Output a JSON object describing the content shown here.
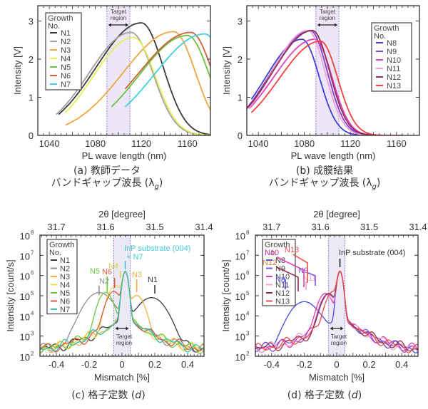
{
  "chart_data": [
    {
      "id": "a",
      "type": "line",
      "title": "",
      "xlabel": "PL wave length (nm)",
      "ylabel": "Intensity [V]",
      "xlim": [
        1030,
        1180
      ],
      "ylim": [
        0,
        3.4
      ],
      "xticks": [
        1040,
        1080,
        1120,
        1160
      ],
      "yticks": [
        0,
        1,
        2,
        3
      ],
      "target_region": [
        1090,
        1110
      ],
      "target_label": "Target region",
      "legend": {
        "title": "Growth No.",
        "placement": "top-left"
      },
      "series": [
        {
          "name": "N1",
          "color": "#3a3a3a",
          "x_start": 1048,
          "x_end": 1180,
          "peak_x": 1120,
          "peak_y": 2.95,
          "start_y": 0.55
        },
        {
          "name": "N2",
          "color": "#a0a0a0",
          "x_start": 1046,
          "x_end": 1180,
          "peak_x": 1111,
          "peak_y": 2.7,
          "start_y": 0.55
        },
        {
          "name": "N3",
          "color": "#f0a640",
          "x_start": 1054,
          "x_end": 1180,
          "peak_x": 1148,
          "peak_y": 2.72,
          "start_y": 0.27
        },
        {
          "name": "N4",
          "color": "#e6f05a",
          "x_start": 1054,
          "x_end": 1180,
          "peak_x": 1113,
          "peak_y": 2.57,
          "start_y": 0.6
        },
        {
          "name": "N5",
          "color": "#6cc040",
          "x_start": 1094,
          "x_end": 1180,
          "peak_x": 1160,
          "peak_y": 2.62,
          "start_y": 0.75
        },
        {
          "name": "N6",
          "color": "#d0603a",
          "x_start": 1106,
          "x_end": 1180,
          "peak_x": 1163,
          "peak_y": 2.7,
          "start_y": 1.22
        },
        {
          "name": "N7",
          "color": "#40d0e0",
          "x_start": 1106,
          "x_end": 1180,
          "peak_x": 1175,
          "peak_y": 2.66,
          "start_y": 0.75
        }
      ],
      "caption_line1": "(a) 教師データ",
      "caption_line2": "バンドギャップ波長 (λg)"
    },
    {
      "id": "b",
      "type": "line",
      "title": "",
      "xlabel": "PL wave length (nm)",
      "ylabel": "Intensity [V]",
      "xlim": [
        1030,
        1180
      ],
      "ylim": [
        0,
        3.4
      ],
      "xticks": [
        1040,
        1080,
        1120,
        1160
      ],
      "yticks": [
        0,
        1,
        2,
        3
      ],
      "target_region": [
        1090,
        1110
      ],
      "target_label": "Target region",
      "legend": {
        "title": "Growth No.",
        "placement": "top-right"
      },
      "series": [
        {
          "name": "N8",
          "color": "#4040d8",
          "x_start": 1034,
          "x_end": 1166,
          "peak_x": 1078,
          "peak_y": 2.52,
          "start_y": 0.95
        },
        {
          "name": "N9",
          "color": "#8040d8",
          "x_start": 1030,
          "x_end": 1166,
          "peak_x": 1085,
          "peak_y": 2.75,
          "start_y": 0.72
        },
        {
          "name": "N10",
          "color": "#e040c0",
          "x_start": 1032,
          "x_end": 1166,
          "peak_x": 1089,
          "peak_y": 2.52,
          "start_y": 0.7
        },
        {
          "name": "N11",
          "color": "#f0a0d8",
          "x_start": 1032,
          "x_end": 1166,
          "peak_x": 1083,
          "peak_y": 2.75,
          "start_y": 0.72
        },
        {
          "name": "N12",
          "color": "#903050",
          "x_start": 1030,
          "x_end": 1166,
          "peak_x": 1087,
          "peak_y": 2.75,
          "start_y": 0.7
        },
        {
          "name": "N13",
          "color": "#f04040",
          "x_start": 1034,
          "x_end": 1166,
          "peak_x": 1094,
          "peak_y": 2.47,
          "start_y": 0.6
        }
      ],
      "caption_line1": "(b) 成膜結果",
      "caption_line2": "バンドギャップ波長 (λg)"
    },
    {
      "id": "c",
      "type": "line",
      "title": "",
      "xlabel": "Mismatch [%]",
      "ylabel": "Intensity [count/s]",
      "top_xlabel": "2θ [degree]",
      "top_xticks": [
        "31.7",
        "31.6",
        "31.5",
        "31.4"
      ],
      "xlim": [
        -0.5,
        0.5
      ],
      "ylim_log10": [
        2,
        8
      ],
      "xticks": [
        "-0.4",
        "-0.2",
        "0",
        "0.2",
        "0.4"
      ],
      "yticks": [
        "10^2",
        "10^3",
        "10^4",
        "10^5",
        "10^6",
        "10^7",
        "10^8"
      ],
      "target_region": [
        -0.05,
        0.05
      ],
      "target_label": "Target region",
      "legend": {
        "title": "Growth No.",
        "placement": "top-left"
      },
      "substrate_peak": {
        "x": 0.02,
        "log10_y": 6.2
      },
      "series": [
        {
          "name": "N1",
          "color": "#3a3a3a",
          "layer_peak_x": 0.18,
          "layer_log10_y": 4.9
        },
        {
          "name": "N2",
          "color": "#909090",
          "layer_peak_x": -0.14,
          "layer_log10_y": 5.15
        },
        {
          "name": "N3",
          "color": "#f0b040",
          "layer_peak_x": 0.09,
          "layer_log10_y": 5.0
        },
        {
          "name": "N4",
          "color": "#e8e050",
          "layer_peak_x": -0.04,
          "layer_log10_y": 5.5
        },
        {
          "name": "N5",
          "color": "#70c840",
          "layer_peak_x": -0.1,
          "layer_log10_y": 5.15
        },
        {
          "name": "N6",
          "color": "#d85a3a",
          "layer_peak_x": -0.05,
          "layer_log10_y": 5.2
        },
        {
          "name": "N7",
          "color": "#30c0b0",
          "layer_peak_x": 0.02,
          "layer_log10_y": 6.2
        }
      ],
      "annotations": [
        {
          "text": "InP substrate (004)",
          "color": "#40c8d8"
        },
        {
          "text": "+ N7",
          "color": "#40c8d8"
        },
        {
          "text": "N1",
          "color": "#3a3a3a"
        },
        {
          "text": "N2",
          "color": "#909090"
        },
        {
          "text": "N3",
          "color": "#f0b040"
        },
        {
          "text": "N4",
          "color": "#d8d040"
        },
        {
          "text": "N5",
          "color": "#70c840"
        },
        {
          "text": "N6",
          "color": "#d85a3a"
        }
      ],
      "caption": "(c) 格子定数 (d)"
    },
    {
      "id": "d",
      "type": "line",
      "title": "",
      "xlabel": "Mismatch [%]",
      "ylabel": "Intensity [count/s]",
      "top_xlabel": "2θ [degree]",
      "top_xticks": [
        "31.7",
        "31.6",
        "31.5",
        "31.4"
      ],
      "xlim": [
        -0.5,
        0.5
      ],
      "ylim_log10": [
        2,
        8
      ],
      "xticks": [
        "-0.4",
        "-0.2",
        "0",
        "0.2",
        "0.4"
      ],
      "yticks": [
        "10^2",
        "10^3",
        "10^4",
        "10^5",
        "10^6",
        "10^7",
        "10^8"
      ],
      "target_region": [
        -0.05,
        0.05
      ],
      "target_label": "Target region",
      "legend": {
        "title": "Growth No.",
        "placement": "top-left"
      },
      "substrate_peak": {
        "x": 0.02,
        "log10_y": 6.2
      },
      "series": [
        {
          "name": "N8",
          "color": "#4848e0",
          "layer_peak_x": -0.2,
          "layer_log10_y": 4.7
        },
        {
          "name": "N9",
          "color": "#8050e0",
          "layer_peak_x": -0.05,
          "layer_log10_y": 5.05
        },
        {
          "name": "N10",
          "color": "#e040b0",
          "layer_peak_x": -0.07,
          "layer_log10_y": 5.1
        },
        {
          "name": "N11",
          "color": "#f0a0d0",
          "layer_peak_x": -0.06,
          "layer_log10_y": 5.0
        },
        {
          "name": "N12",
          "color": "#903048",
          "layer_peak_x": -0.05,
          "layer_log10_y": 5.1
        },
        {
          "name": "N13",
          "color": "#f04848",
          "layer_peak_x": -0.02,
          "layer_log10_y": 5.2
        }
      ],
      "annotations": [
        {
          "text": "InP substrate (004)",
          "color": "#333333"
        },
        {
          "text": "N8",
          "color": "#4848e0"
        },
        {
          "text": "N9",
          "color": "#8050e0"
        },
        {
          "text": "N10",
          "color": "#e040b0"
        },
        {
          "text": "N11",
          "color": "#f0a0d0"
        },
        {
          "text": "N12",
          "color": "#d08040"
        },
        {
          "text": "N13",
          "color": "#f04848"
        }
      ],
      "caption": "(d) 格子定数 (d)"
    }
  ],
  "captions": {
    "a_line1": "(a) 教師データ",
    "a_line2_prefix": "バンドギャップ波長 (λ",
    "a_line2_sub": "g",
    "a_line2_suffix": ")",
    "b_line1": "(b) 成膜結果",
    "b_line2_prefix": "バンドギャップ波長 (λ",
    "b_line2_sub": "g",
    "b_line2_suffix": ")",
    "c_prefix": "(c) 格子定数 (",
    "c_var": "d",
    "c_suffix": ")",
    "d_prefix": "(d) 格子定数 (",
    "d_var": "d",
    "d_suffix": ")"
  }
}
